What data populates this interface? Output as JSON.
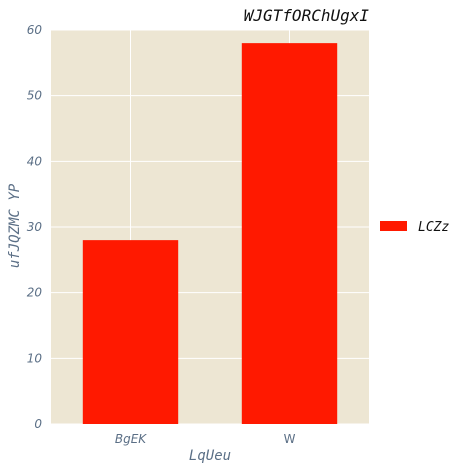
{
  "chart_data": {
    "type": "bar",
    "title": "WJGTfORChUgxI",
    "xlabel": "LqUeu",
    "ylabel": "ufJQZMC YP",
    "categories": [
      "BgEK",
      "W"
    ],
    "series": [
      {
        "name": "LCZz",
        "values": [
          28,
          58
        ],
        "color": "#ff1900"
      }
    ],
    "ylim": [
      0,
      60
    ],
    "yticks": [
      "0",
      "10",
      "20",
      "30",
      "40",
      "50",
      "60"
    ],
    "grid": true,
    "legend_position": "right",
    "colors": {
      "plot_background": "#ede6d3",
      "grid": "#ffffff",
      "tick_text": "#5b6f86"
    }
  }
}
